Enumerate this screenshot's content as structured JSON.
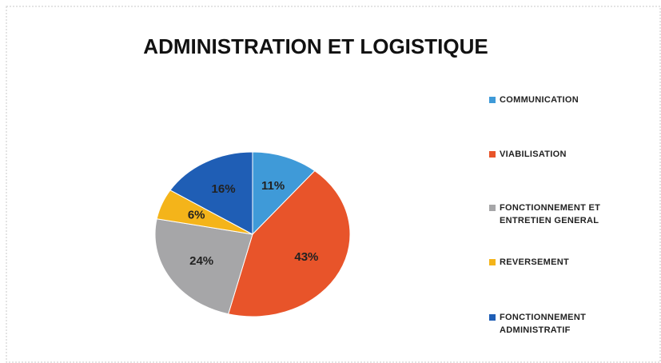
{
  "chart_data": {
    "type": "pie",
    "title": "ADMINISTRATION ET LOGISTIQUE",
    "categories": [
      "COMMUNICATION",
      "VIABILISATION",
      "FONCTIONNEMENT ET ENTRETIEN GENERAL",
      "REVERSEMENT",
      "FONCTIONNEMENT ADMINISTRATIF"
    ],
    "values": [
      11,
      43,
      24,
      6,
      16
    ],
    "value_labels": [
      "11%",
      "43%",
      "24%",
      "6%",
      "16%"
    ],
    "colors": [
      "#3f9ad8",
      "#e8542a",
      "#a6a6a8",
      "#f4b41a",
      "#1f5eb5"
    ],
    "legend": "right"
  }
}
